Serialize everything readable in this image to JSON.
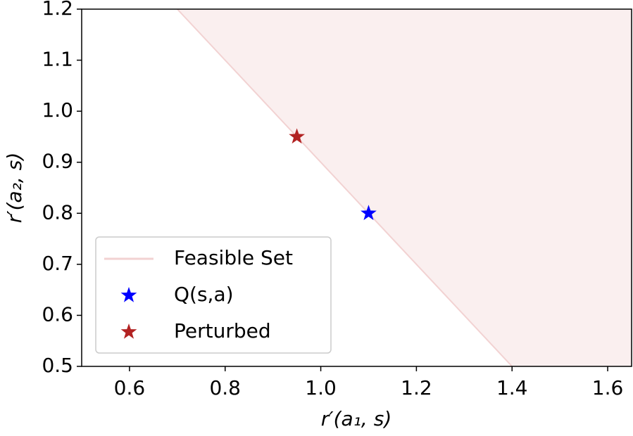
{
  "chart_data": {
    "type": "line",
    "xlabel": "r′(a₁, s)",
    "ylabel": "r′(a₂, s)",
    "xlim": [
      0.5,
      1.65
    ],
    "ylim": [
      0.5,
      1.2
    ],
    "xticks": [
      0.6,
      0.8,
      {
        "value": 1,
        "label": "1.0"
      },
      1.2,
      1.4,
      1.6
    ],
    "yticks": [
      0.5,
      0.6,
      0.7,
      0.8,
      0.9,
      {
        "value": 1,
        "label": "1.0"
      },
      1.1,
      1.2
    ],
    "legend": "lower left",
    "series": [
      {
        "name": "Feasible Set",
        "type": "line",
        "fill": "above",
        "color": "#f2d2d2",
        "x": [
          0.7,
          1.4
        ],
        "values": [
          1.2,
          0.5
        ]
      },
      {
        "name": "Q(s,a)",
        "type": "scatter",
        "color": "#0000ff",
        "x": [
          1.1
        ],
        "values": [
          0.8
        ]
      },
      {
        "name": "Perturbed",
        "type": "scatter",
        "color": "#b22222",
        "x": [
          0.95
        ],
        "values": [
          0.95
        ]
      }
    ]
  }
}
